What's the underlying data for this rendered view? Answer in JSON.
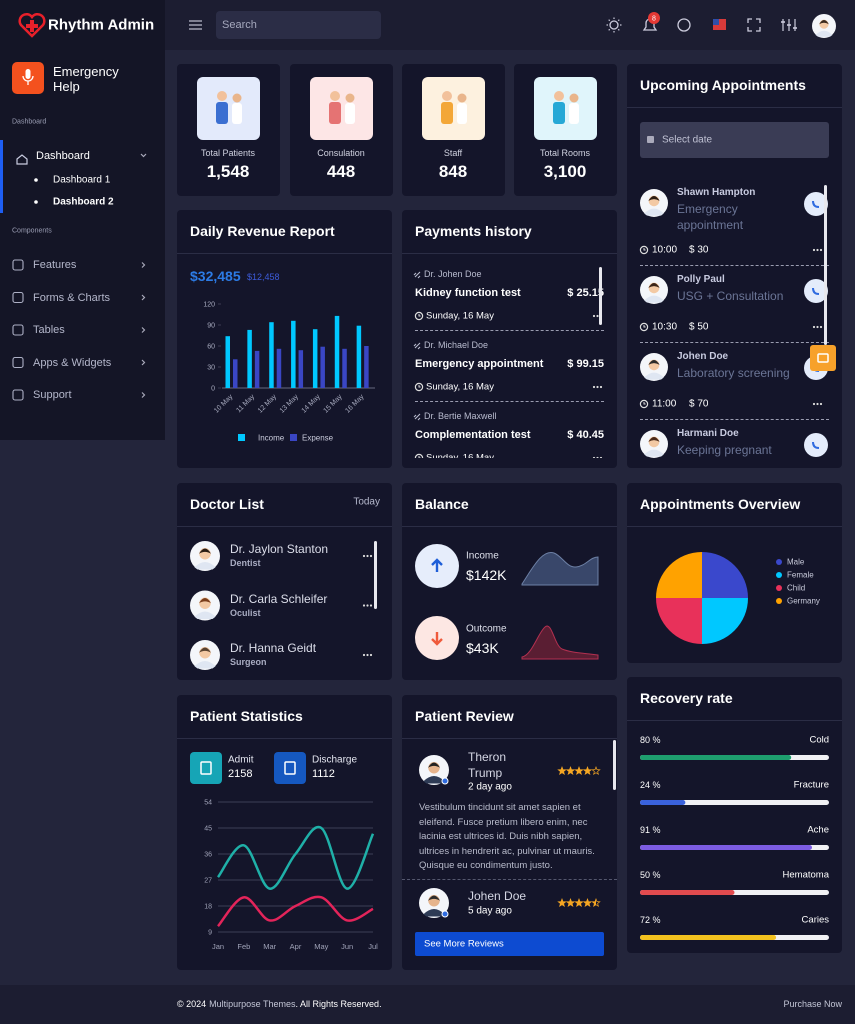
{
  "header": {
    "brand": "Rhythm Admin",
    "search": "Search",
    "notifications": "8"
  },
  "sidebar": {
    "emergency": "Emergency Help",
    "section_dashboard": "Dashboard",
    "dashboard": "Dashboard",
    "dashboard_items": [
      "Dashboard 1",
      "Dashboard 2"
    ],
    "section_components": "Components",
    "menu": [
      "Features",
      "Forms & Charts",
      "Tables",
      "Apps & Widgets",
      "Support"
    ]
  },
  "stats": [
    {
      "label": "Total Patients",
      "value": "1,548"
    },
    {
      "label": "Consulation",
      "value": "448"
    },
    {
      "label": "Staff",
      "value": "848"
    },
    {
      "label": "Total Rooms",
      "value": "3,100"
    }
  ],
  "appointments": {
    "title": "Upcoming Appointments",
    "date_placeholder": "Select date",
    "items": [
      {
        "name": "Shawn Hampton",
        "service": "Emergency appointment",
        "time": "10:00",
        "price": "$ 30"
      },
      {
        "name": "Polly Paul",
        "service": "USG + Consultation",
        "time": "10:30",
        "price": "$ 50"
      },
      {
        "name": "Johen Doe",
        "service": "Laboratory screening",
        "time": "11:00",
        "price": "$ 70"
      },
      {
        "name": "Harmani Doe",
        "service": "Keeping pregnant"
      }
    ]
  },
  "payments": {
    "title": "Payments history",
    "items": [
      {
        "doctor": "Dr. Johen Doe",
        "service": "Kidney function test",
        "amount": "$ 25.15",
        "date": "Sunday, 16 May"
      },
      {
        "doctor": "Dr. Michael Doe",
        "service": "Emergency appointment",
        "amount": "$ 99.15",
        "date": "Sunday, 16 May"
      },
      {
        "doctor": "Dr. Bertie Maxwell",
        "service": "Complementation test",
        "amount": "$ 40.45",
        "date": "Sunday, 16 May"
      }
    ]
  },
  "doctors": {
    "title": "Doctor List",
    "filter": "Today",
    "items": [
      {
        "name": "Dr. Jaylon Stanton",
        "specialty": "Dentist"
      },
      {
        "name": "Dr. Carla Schleifer",
        "specialty": "Oculist"
      },
      {
        "name": "Dr. Hanna Geidt",
        "specialty": "Surgeon"
      }
    ]
  },
  "balance": {
    "title": "Balance",
    "items": [
      {
        "label": "Income",
        "value": "$142K"
      },
      {
        "label": "Outcome",
        "value": "$43K"
      }
    ]
  },
  "reviews": {
    "title": "Patient Review",
    "button": "See More Reviews",
    "items": [
      {
        "name": "Theron Trump",
        "time": "2 day ago",
        "rating": 4,
        "text": "Vestibulum tincidunt sit amet sapien et eleifend. Fusce pretium libero enim, nec lacinia est ultrices id. Duis nibh sapien, ultrices in hendrerit ac, pulvinar ut mauris. Quisque eu condimentum justo."
      },
      {
        "name": "Johen Doe",
        "time": "5 day ago",
        "rating": 4.5
      }
    ]
  },
  "recovery": {
    "title": "Recovery rate",
    "items": [
      {
        "name": "Cold",
        "value": 80,
        "value_label": "80 %",
        "color": "#1e9e6e"
      },
      {
        "name": "Fracture",
        "value": 24,
        "value_label": "24 %",
        "color": "#3a62dc"
      },
      {
        "name": "Ache",
        "value": 91,
        "value_label": "91 %",
        "color": "#7c5ce2"
      },
      {
        "name": "Hematoma",
        "value": 50,
        "value_label": "50 %",
        "color": "#e24b4f"
      },
      {
        "name": "Caries",
        "value": 72,
        "value_label": "72 %",
        "color": "#f3c11f"
      }
    ]
  },
  "footer": {
    "prefix": "© 2024",
    "company": "Multipurpose Themes",
    "suffix": ". All Rights Reserved.",
    "link": "Purchase Now"
  },
  "chart_data": [
    {
      "type": "bar",
      "title": "Daily Revenue Report",
      "annotations": [
        "$32,485",
        "$12,458"
      ],
      "categories": [
        "10 May",
        "11 May",
        "12 May",
        "13 May",
        "14 May",
        "15 May",
        "16 May"
      ],
      "series": [
        {
          "name": "Income",
          "color": "#00c8ff",
          "values": [
            74,
            83,
            94,
            96,
            84,
            103,
            89
          ]
        },
        {
          "name": "Expense",
          "color": "#3a46c4",
          "values": [
            41,
            53,
            56,
            54,
            59,
            56,
            60
          ]
        }
      ],
      "ylim": [
        0,
        120
      ],
      "yticks": [
        0,
        30,
        60,
        90,
        120
      ]
    },
    {
      "type": "line",
      "title": "Patient Statistics",
      "summary": [
        {
          "label": "Admit",
          "value": 2158
        },
        {
          "label": "Discharge",
          "value": 1112
        }
      ],
      "categories": [
        "Jan",
        "Feb",
        "Mar",
        "Apr",
        "May",
        "Jun",
        "Jul"
      ],
      "series": [
        {
          "color": "#1fb0a8",
          "values": [
            28,
            39,
            24,
            36,
            45,
            24,
            43
          ]
        },
        {
          "color": "#e3245a",
          "values": [
            11,
            21,
            13,
            18,
            21,
            13,
            17
          ]
        }
      ],
      "ylim": [
        9,
        54
      ],
      "yticks": [
        9,
        18,
        27,
        36,
        45,
        54
      ],
      "grid": true
    },
    {
      "type": "pie",
      "title": "Appointments Overview",
      "categories": [
        "Male",
        "Female",
        "Child",
        "Germany"
      ],
      "values": [
        25,
        25,
        25,
        25
      ],
      "colors": [
        "#3a48cc",
        "#00c8ff",
        "#e8315a",
        "#ffa200"
      ]
    }
  ]
}
